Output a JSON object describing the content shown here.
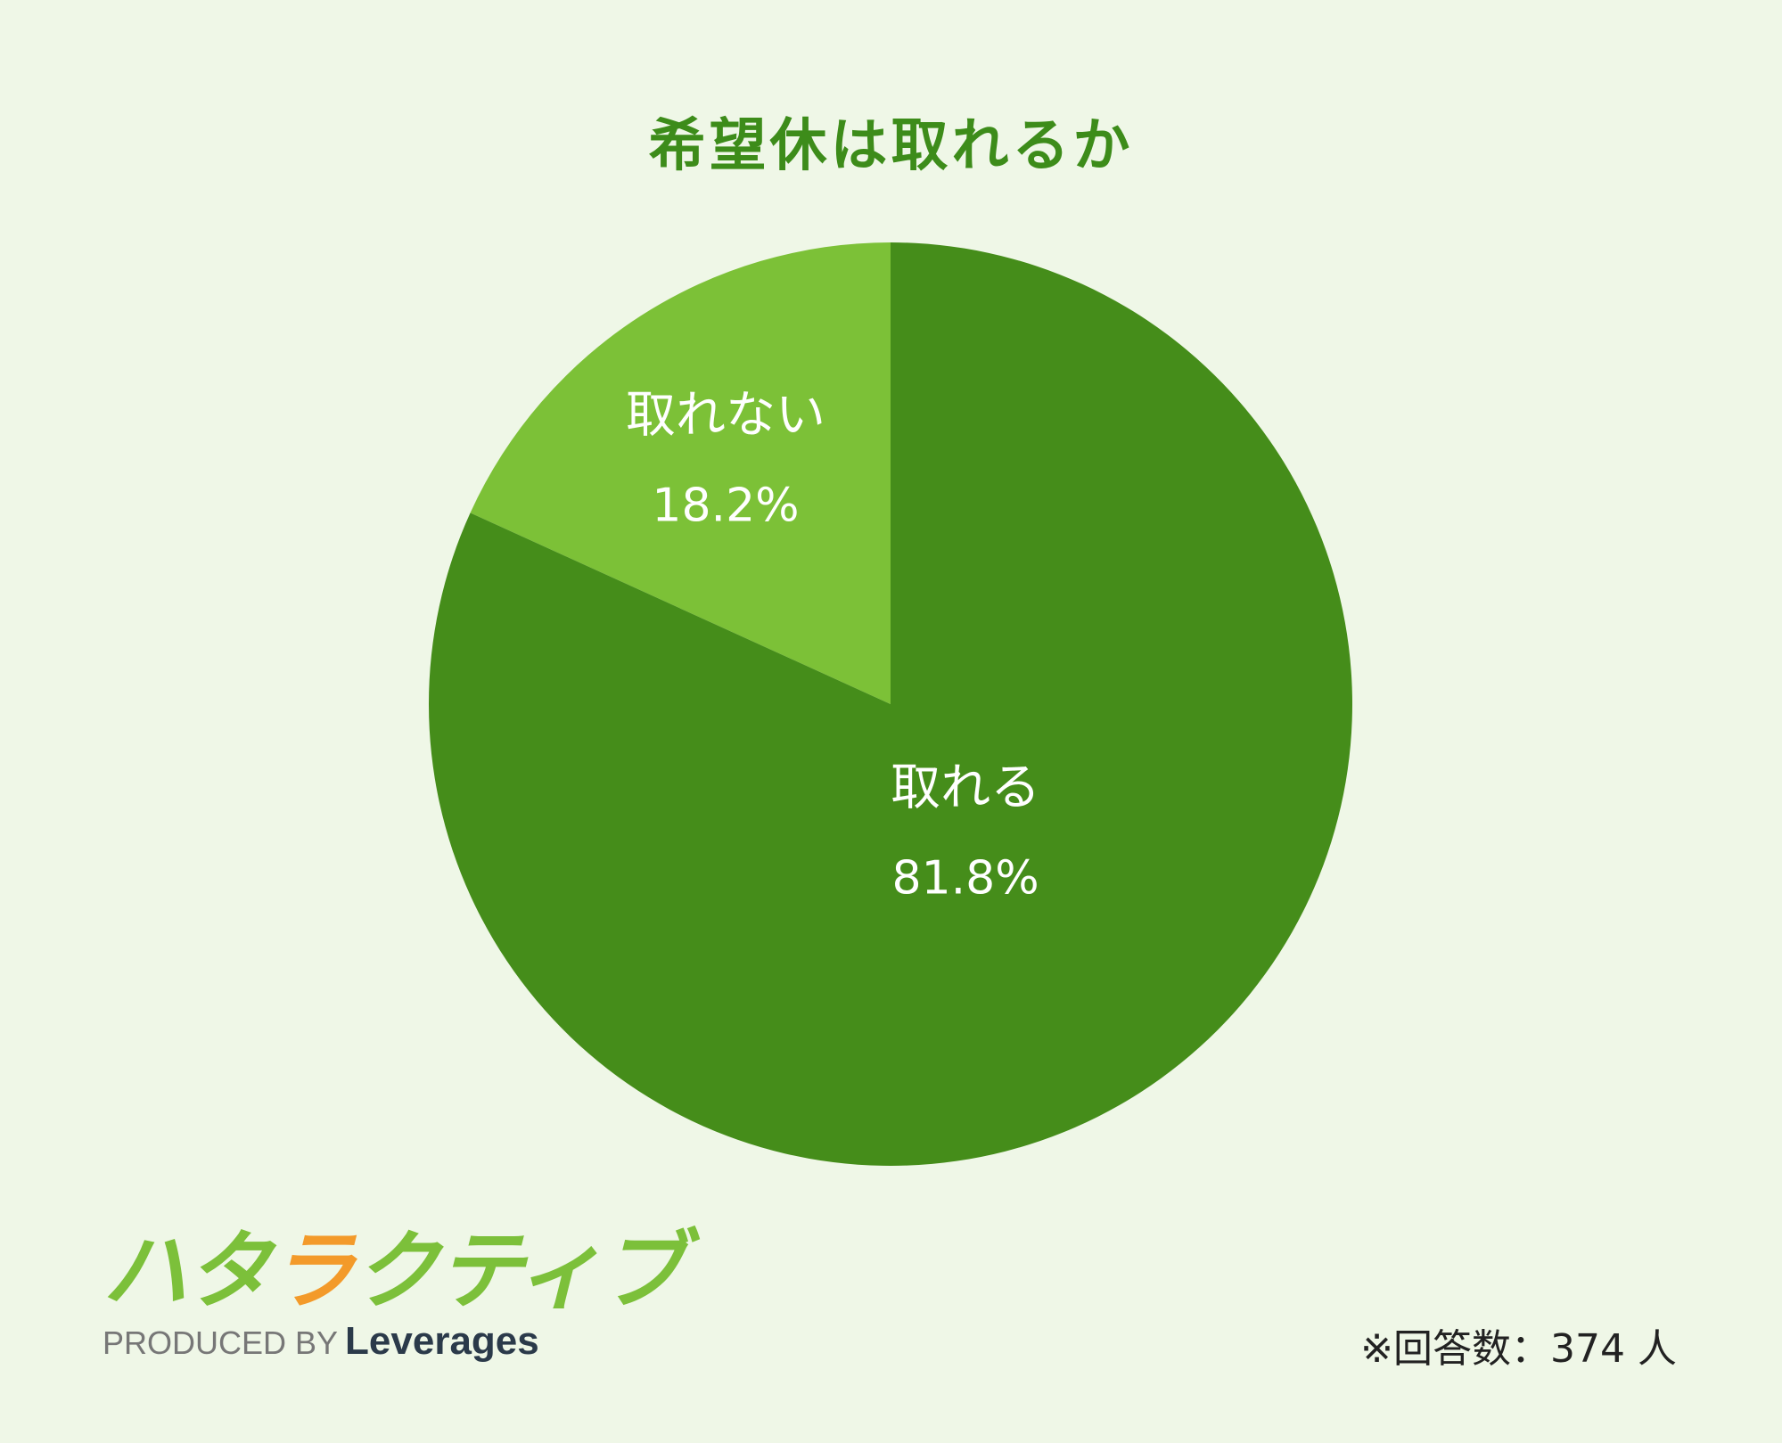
{
  "chart_data": {
    "type": "pie",
    "title": "希望休は取れるか",
    "slices": [
      {
        "label": "取れない",
        "value": 18.2,
        "display": "18.2%",
        "color": "#7cc137"
      },
      {
        "label": "取れる",
        "value": 81.8,
        "display": "81.8%",
        "color": "#458d1a"
      }
    ],
    "start": "12 o'clock",
    "direction": "counterclockwise"
  },
  "logo": {
    "mark": "ハタラクティブ",
    "produced": "PRODUCED BY",
    "brand": "Leverages"
  },
  "note": "※回答数：374 人",
  "colors": {
    "background": "#eff7e7",
    "title": "#3d8c1a"
  }
}
